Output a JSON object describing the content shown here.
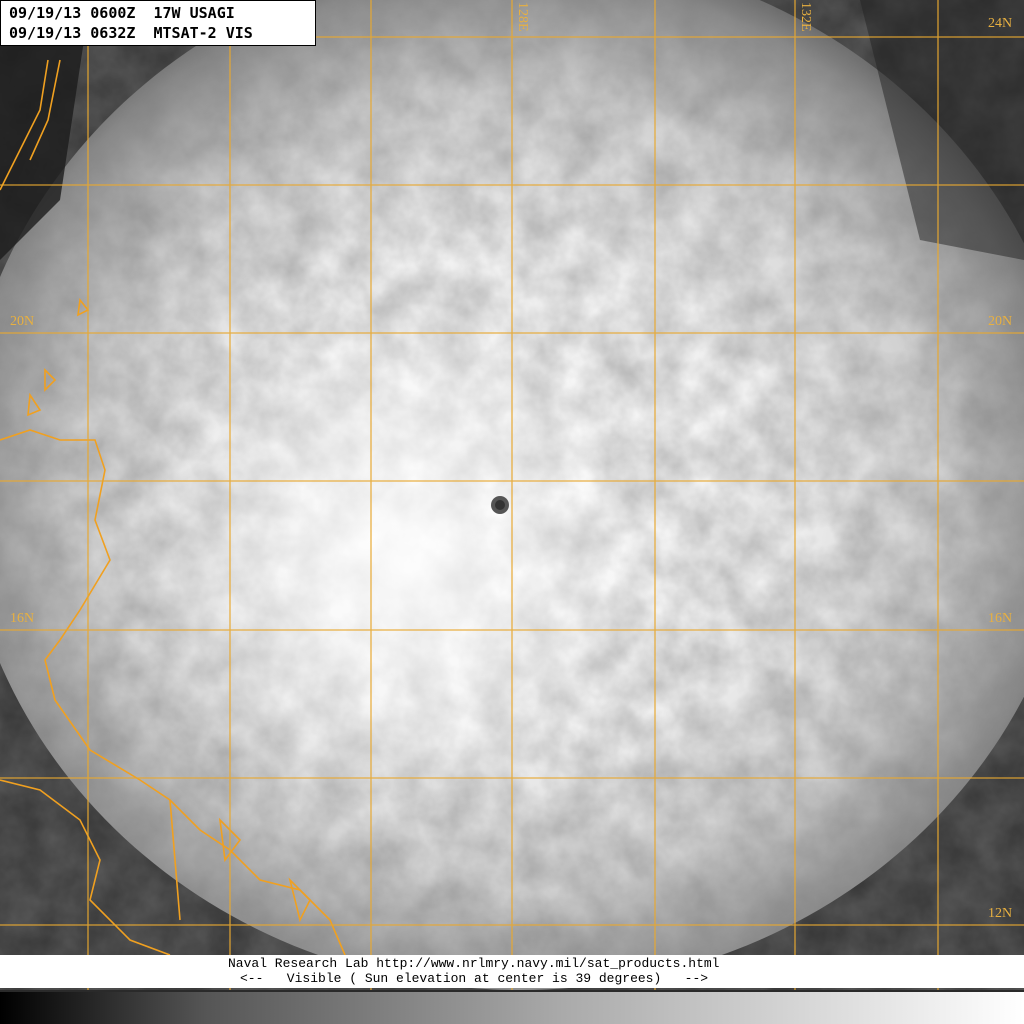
{
  "header": {
    "line1": "09/19/13 0600Z  17W USAGI",
    "line2": "09/19/13 0632Z  MTSAT-2 VIS"
  },
  "grid_labels": {
    "lon": [
      "128E",
      "132E"
    ],
    "lat_right": [
      "24N",
      "20N",
      "16N",
      "12N"
    ],
    "lat_left": [
      "20N",
      "16N"
    ]
  },
  "footer": {
    "line1": "Naval Research Lab http://www.nrlmry.navy.mil/sat_products.html",
    "line2": "<--   Visible ( Sun elevation at center is 39 degrees)   -->"
  },
  "colors": {
    "grid": "#e8a830",
    "coastline": "#f0a020"
  }
}
